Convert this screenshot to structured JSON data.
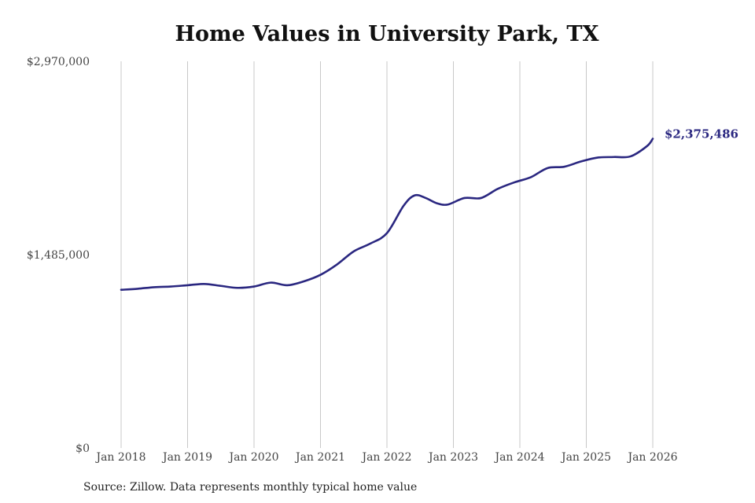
{
  "chart_data": {
    "type": "line",
    "title": "Home Values in University Park, TX",
    "xlabel": "",
    "ylabel": "",
    "ylim": [
      0,
      2970000
    ],
    "xlim": [
      "2018-01",
      "2026-01"
    ],
    "y_ticks": [
      "$0",
      "$1,485,000",
      "$2,970,000"
    ],
    "x_ticks": [
      "Jan 2018",
      "Jan 2019",
      "Jan 2020",
      "Jan 2021",
      "Jan 2022",
      "Jan 2023",
      "Jan 2024",
      "Jan 2025",
      "Jan 2026"
    ],
    "grid": "vertical",
    "line_color": "#2a2780",
    "end_label": "$2,375,486",
    "source": "Source: Zillow. Data represents monthly typical home value",
    "series": [
      {
        "x": [
          "2018-01",
          "2018-04",
          "2018-07",
          "2018-10",
          "2019-01",
          "2019-04",
          "2019-07",
          "2019-10",
          "2020-01",
          "2020-04",
          "2020-07",
          "2020-10",
          "2021-01",
          "2021-04",
          "2021-07",
          "2021-10",
          "2022-01",
          "2022-04",
          "2022-06",
          "2022-08",
          "2022-10",
          "2022-12",
          "2023-03",
          "2023-06",
          "2023-09",
          "2023-12",
          "2024-03",
          "2024-06",
          "2024-09",
          "2024-12",
          "2025-03",
          "2025-06",
          "2025-09",
          "2025-12",
          "2026-01"
        ],
        "values": [
          1215000,
          1223000,
          1235000,
          1240000,
          1250000,
          1260000,
          1245000,
          1230000,
          1240000,
          1270000,
          1250000,
          1280000,
          1330000,
          1410000,
          1510000,
          1570000,
          1650000,
          1860000,
          1940000,
          1920000,
          1880000,
          1870000,
          1920000,
          1920000,
          1990000,
          2040000,
          2080000,
          2150000,
          2160000,
          2200000,
          2230000,
          2235000,
          2240000,
          2320000,
          2375486
        ]
      }
    ]
  }
}
